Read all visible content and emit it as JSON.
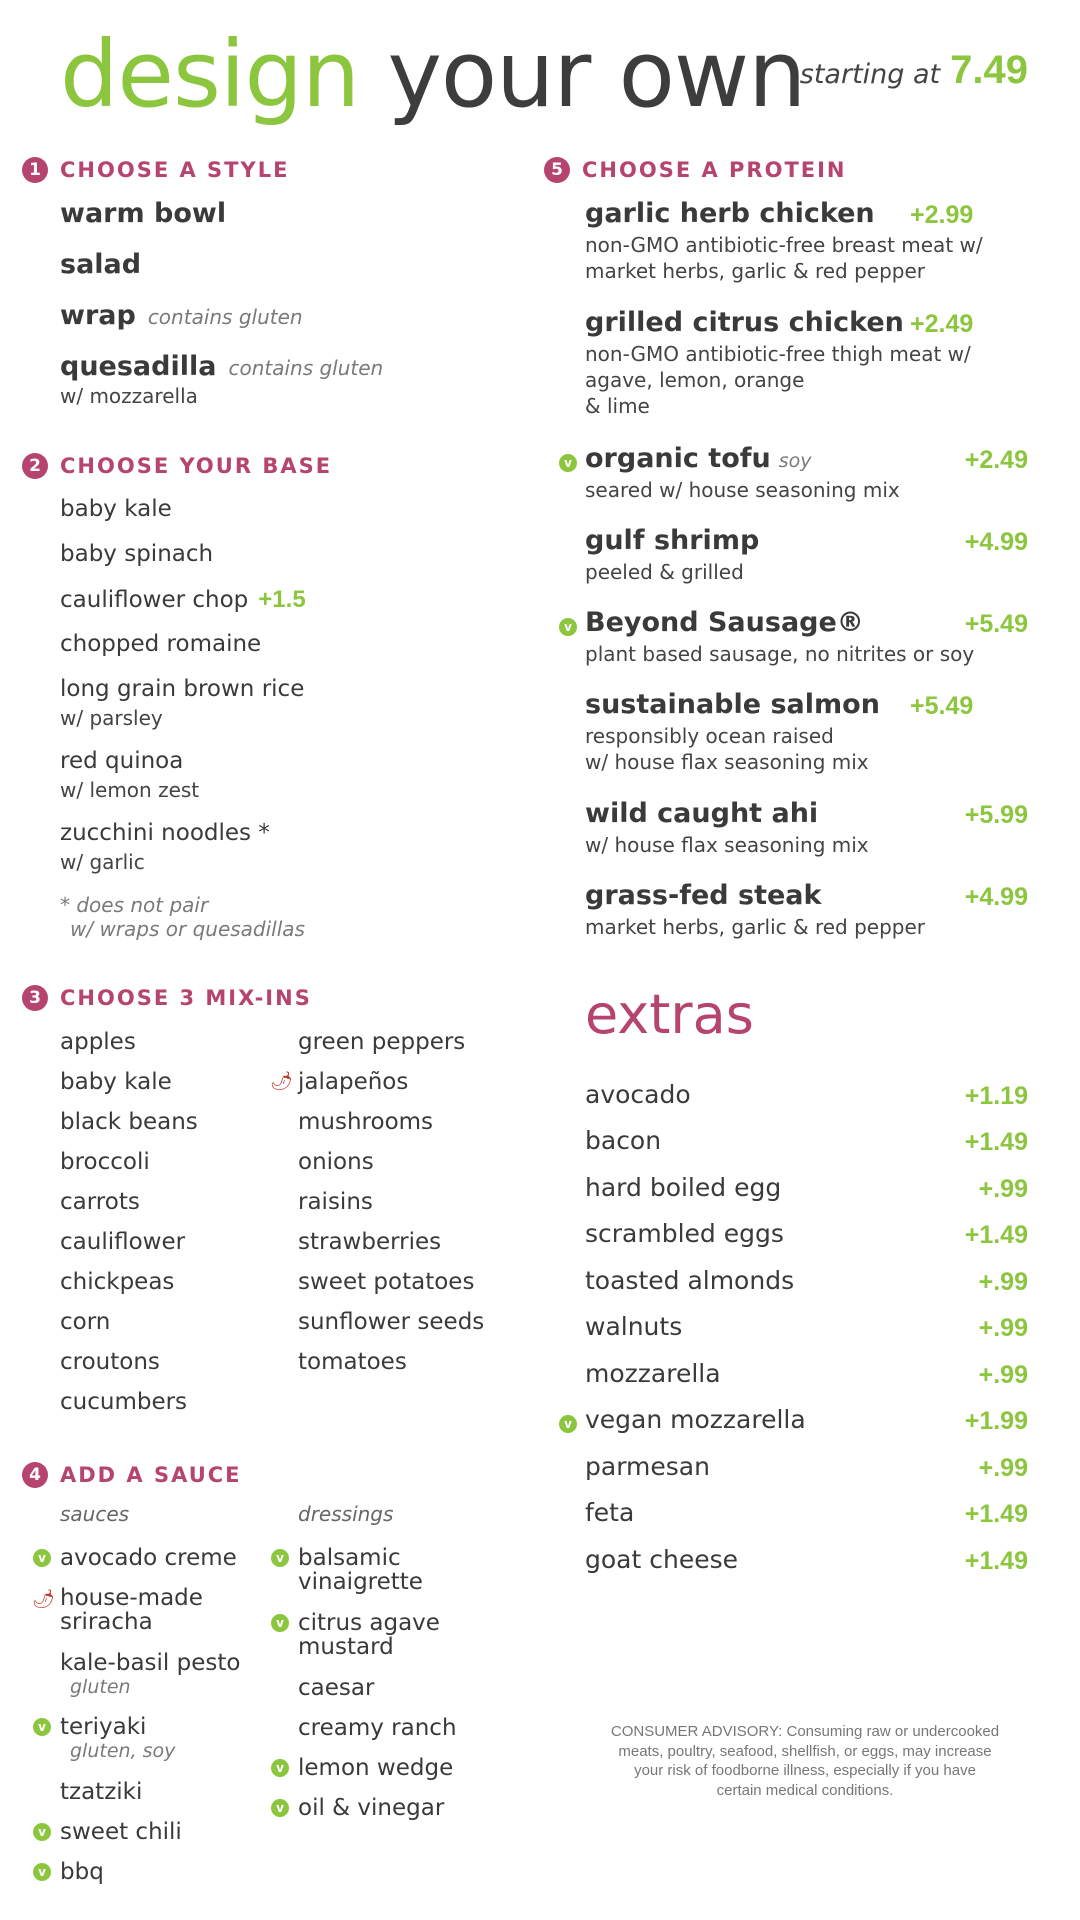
{
  "header": {
    "title_word1": "design",
    "title_word2": "your own",
    "starting_label": "starting at",
    "starting_price": "7.49"
  },
  "colors": {
    "green": "#8cc63f",
    "magenta": "#b5446e",
    "text": "#3a3a3a"
  },
  "style_section": {
    "number": "1",
    "title": "CHOOSE A STYLE",
    "items": [
      {
        "name": "warm bowl"
      },
      {
        "name": "salad"
      },
      {
        "name": "wrap",
        "note": "contains gluten"
      },
      {
        "name": "quesadilla",
        "note": "contains gluten",
        "sub": "w/ mozzarella"
      }
    ]
  },
  "base_section": {
    "number": "2",
    "title": "CHOOSE YOUR BASE",
    "items": [
      {
        "name": "baby kale"
      },
      {
        "name": "baby spinach"
      },
      {
        "name": "cauliflower chop",
        "price": "+1.5"
      },
      {
        "name": "chopped romaine"
      },
      {
        "name": "long grain brown rice",
        "sub": "w/ parsley"
      },
      {
        "name": "red quinoa",
        "sub": "w/ lemon zest"
      },
      {
        "name": "zucchini noodles *",
        "sub": "w/ garlic"
      }
    ],
    "footnote_line1": "* does not pair",
    "footnote_line2": "w/ wraps or quesadillas"
  },
  "mixins_section": {
    "number": "3",
    "title": "CHOOSE 3 MIX-INS",
    "col1": [
      "apples",
      "baby kale",
      "black beans",
      "broccoli",
      "carrots",
      "cauliflower",
      "chickpeas",
      "corn",
      "croutons",
      "cucumbers"
    ],
    "col2": [
      "green peppers",
      "jalapeños",
      "mushrooms",
      "onions",
      "raisins",
      "strawberries",
      "sweet potatoes",
      "sunflower seeds",
      "tomatoes"
    ]
  },
  "sauce_section": {
    "number": "4",
    "title": "ADD A SAUCE",
    "sauces_label": "sauces",
    "dressings_label": "dressings",
    "sauces": [
      {
        "line1": "avocado creme",
        "marker": "vegan"
      },
      {
        "line1": "house-made",
        "line2": "sriracha",
        "marker": "spicy"
      },
      {
        "line1": "kale-basil pesto",
        "note": "gluten"
      },
      {
        "line1": "teriyaki",
        "note": "gluten, soy",
        "marker": "vegan"
      },
      {
        "line1": "tzatziki"
      },
      {
        "line1": "sweet chili",
        "marker": "vegan"
      },
      {
        "line1": "bbq",
        "marker": "vegan"
      }
    ],
    "dressings": [
      {
        "line1": "balsamic",
        "line2": "vinaigrette",
        "marker": "vegan"
      },
      {
        "line1": "citrus agave",
        "line2": "mustard",
        "marker": "vegan"
      },
      {
        "line1": "caesar"
      },
      {
        "line1": "creamy ranch"
      },
      {
        "line1": "lemon wedge",
        "marker": "vegan"
      },
      {
        "line1": "oil & vinegar",
        "marker": "vegan"
      }
    ]
  },
  "protein_section": {
    "number": "5",
    "title": "CHOOSE A PROTEIN",
    "items": [
      {
        "name": "garlic herb chicken",
        "price": "+2.99",
        "desc1": "non-GMO antibiotic-free breast meat w/",
        "desc2": "market herbs, garlic & red pepper"
      },
      {
        "name": "grilled citrus chicken",
        "price": "+2.49",
        "desc1": "non-GMO antibiotic-free thigh meat w/",
        "desc2": "agave, lemon, orange",
        "desc3": "& lime"
      },
      {
        "name": "organic tofu",
        "note": "soy",
        "price": "+2.49",
        "desc1": "seared w/ house seasoning mix",
        "marker": "vegan"
      },
      {
        "name": "gulf shrimp",
        "price": "+4.99",
        "desc1": "peeled & grilled"
      },
      {
        "name": "Beyond Sausage®",
        "price": "+5.49",
        "desc1": "plant based sausage, no nitrites or soy",
        "marker": "vegan"
      },
      {
        "name": "sustainable salmon",
        "price": "+5.49",
        "desc1": "responsibly ocean raised",
        "desc2": "w/ house flax seasoning mix"
      },
      {
        "name": "wild caught ahi",
        "price": "+5.99",
        "desc1": "w/ house flax seasoning mix"
      },
      {
        "name": "grass-fed steak",
        "price": "+4.99",
        "desc1": "market herbs, garlic & red pepper"
      }
    ]
  },
  "extras_section": {
    "title": "extras",
    "items": [
      {
        "name": "avocado",
        "price": "+1.19"
      },
      {
        "name": "bacon",
        "price": "+1.49"
      },
      {
        "name": "hard boiled egg",
        "price": "+.99"
      },
      {
        "name": "scrambled eggs",
        "price": "+1.49"
      },
      {
        "name": "toasted almonds",
        "price": "+.99"
      },
      {
        "name": "walnuts",
        "price": "+.99"
      },
      {
        "name": "mozzarella",
        "price": "+.99"
      },
      {
        "name": "vegan mozzarella",
        "price": "+1.99",
        "marker": "vegan"
      },
      {
        "name": "parmesan",
        "price": "+.99"
      },
      {
        "name": "feta",
        "price": "+1.49"
      },
      {
        "name": "goat cheese",
        "price": "+1.49"
      }
    ]
  },
  "icons": {
    "vegan_marker": "v",
    "spicy_marker": "🌶"
  },
  "advisory": {
    "line1": "CONSUMER ADVISORY: Consuming raw or undercooked",
    "line2": "meats, poultry, seafood, shellfish, or eggs, may increase",
    "line3": "your risk of foodborne illness, especially if you have",
    "line4": "certain medical conditions."
  }
}
